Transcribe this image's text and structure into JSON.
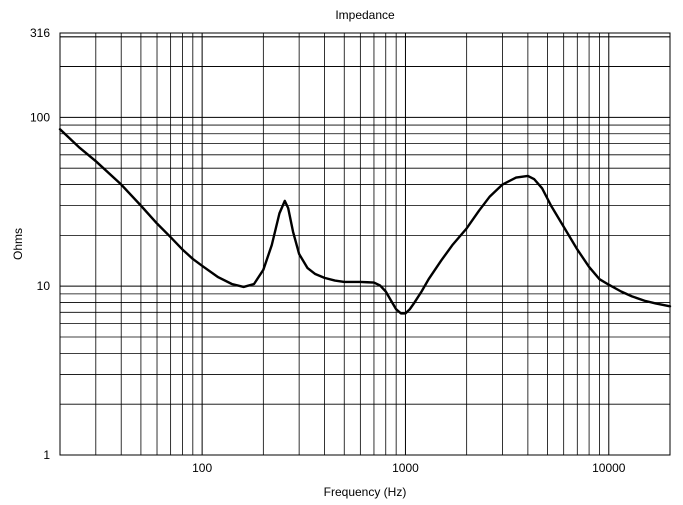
{
  "chart_data": {
    "type": "line",
    "title": "Impedance",
    "xlabel": "Frequency (Hz)",
    "ylabel": "Ohms",
    "xscale": "log",
    "yscale": "log",
    "xlim": [
      20,
      20000
    ],
    "ylim": [
      1,
      316
    ],
    "grid": true,
    "x_ticks": [
      {
        "value": 100,
        "label": "100"
      },
      {
        "value": 1000,
        "label": "1000"
      },
      {
        "value": 10000,
        "label": "10000"
      }
    ],
    "y_ticks": [
      {
        "value": 1,
        "label": "1"
      },
      {
        "value": 10,
        "label": "10"
      },
      {
        "value": 100,
        "label": "100"
      },
      {
        "value": 316,
        "label": "316"
      }
    ],
    "series": [
      {
        "line_color": "#000000",
        "x": [
          20,
          25,
          30,
          40,
          50,
          60,
          70,
          80,
          90,
          100,
          120,
          140,
          160,
          180,
          200,
          220,
          240,
          255,
          265,
          280,
          300,
          330,
          360,
          400,
          450,
          500,
          550,
          600,
          650,
          700,
          750,
          800,
          850,
          900,
          950,
          1000,
          1050,
          1100,
          1200,
          1300,
          1500,
          1700,
          2000,
          2300,
          2600,
          3000,
          3500,
          4000,
          4300,
          4700,
          5200,
          6000,
          7000,
          8000,
          9000,
          10000,
          11500,
          13000,
          15000,
          17000,
          20000
        ],
        "y": [
          85,
          66,
          55,
          40,
          30,
          23.5,
          19.5,
          16.5,
          14.5,
          13.2,
          11.3,
          10.3,
          9.9,
          10.3,
          12.5,
          17.5,
          27,
          32,
          29,
          21,
          15.5,
          12.8,
          11.8,
          11.2,
          10.8,
          10.6,
          10.6,
          10.6,
          10.55,
          10.5,
          10.1,
          9.3,
          8.2,
          7.3,
          6.9,
          6.9,
          7.3,
          7.9,
          9.3,
          11,
          14.2,
          17.5,
          22,
          28,
          34,
          40,
          44,
          45,
          43,
          38,
          30,
          22.5,
          16.5,
          13,
          11,
          10.2,
          9.3,
          8.7,
          8.2,
          7.9,
          7.6
        ]
      }
    ]
  }
}
